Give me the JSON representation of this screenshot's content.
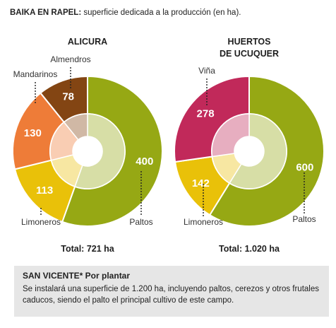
{
  "header": {
    "bold": "BAIKA EN RAPEL:",
    "text": " superficie dedicada a la producción (en ha)."
  },
  "chart_data": [
    {
      "type": "pie",
      "title": "ALICURA",
      "categories": [
        "Paltos",
        "Limoneros",
        "Mandarinos",
        "Almendros"
      ],
      "values": [
        400,
        113,
        130,
        78
      ],
      "colors": [
        "#96a814",
        "#e9c109",
        "#ee7c38",
        "#834513"
      ],
      "total_label": "Total: 721 ha"
    },
    {
      "type": "pie",
      "title": "HUERTOS DE UCUQUER",
      "categories": [
        "Paltos",
        "Limoneros",
        "Viña"
      ],
      "values": [
        600,
        142,
        278
      ],
      "colors": [
        "#96a814",
        "#e9c109",
        "#c1295a"
      ],
      "total_label": "Total: 1.020 ha"
    }
  ],
  "note": {
    "title": "SAN VICENTE* Por plantar",
    "text": "Se instalará una superficie de 1.200 ha, incluyendo paltos, cerezos y otros frutales caducos, siendo el palto el principal cultivo de este campo."
  }
}
